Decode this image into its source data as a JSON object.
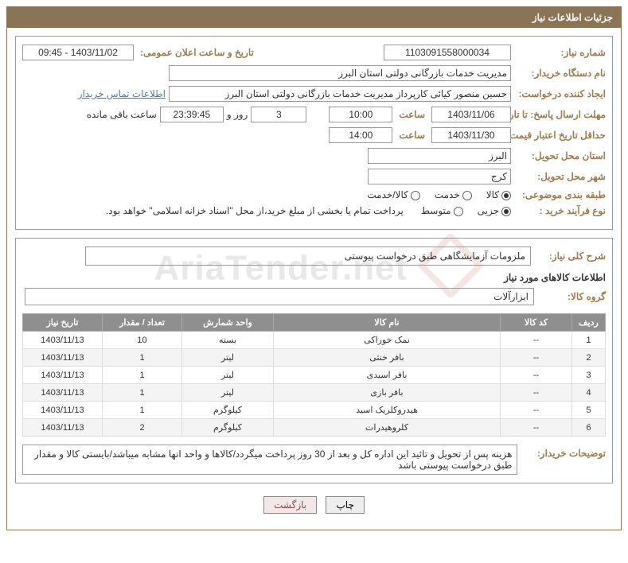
{
  "header_title": "جزئیات اطلاعات نیاز",
  "need_number_label": "شماره نیاز:",
  "need_number": "1103091558000034",
  "announce_label": "تاریخ و ساعت اعلان عمومی:",
  "announce_value": "1403/11/02 - 09:45",
  "buyer_org_label": "نام دستگاه خریدار:",
  "buyer_org": "مدیریت خدمات بازرگانی دولتی استان البرز",
  "requester_label": "ایجاد کننده درخواست:",
  "requester": "حسین منصور کیائی کارپرداز مدیریت خدمات بازرگانی دولتی استان البرز",
  "buyer_contact_link": "اطلاعات تماس خریدار",
  "deadline_label": "مهلت ارسال پاسخ: تا تاریخ:",
  "deadline_date": "1403/11/06",
  "time_label": "ساعت",
  "deadline_time": "10:00",
  "days_value": "3",
  "days_and": "روز و",
  "remaining_time": "23:39:45",
  "remaining_label": "ساعت باقی مانده",
  "validity_label": "حداقل تاریخ اعتبار قیمت: تا تاریخ:",
  "validity_date": "1403/11/30",
  "validity_time": "14:00",
  "province_label": "استان محل تحویل:",
  "province": "البرز",
  "city_label": "شهر محل تحویل:",
  "city": "کرج",
  "category_label": "طبقه بندی موضوعی:",
  "cat_goods": "کالا",
  "cat_service": "خدمت",
  "cat_goods_service": "کالا/خدمت",
  "purchase_type_label": "نوع فرآیند خرید :",
  "pt_partial": "جزیی",
  "pt_medium": "متوسط",
  "payment_note": "پرداخت تمام یا بخشی از مبلغ خرید،از محل \"اسناد خزانه اسلامی\" خواهد بود.",
  "general_desc_label": "شرح کلی نیاز:",
  "general_desc": "ملزومات آزمایشگاهی طبق درخواست پیوستی",
  "goods_info_title": "اطلاعات کالاهای مورد نیاز",
  "goods_group_label": "گروه کالا:",
  "goods_group": "ابزارآلات",
  "table": {
    "headers": {
      "row": "ردیف",
      "code": "کد کالا",
      "name": "نام کالا",
      "unit": "واحد شمارش",
      "qty": "تعداد / مقدار",
      "date": "تاریخ نیاز"
    },
    "rows": [
      {
        "row": "1",
        "code": "--",
        "name": "نمک خوراکی",
        "unit": "بسته",
        "qty": "10",
        "date": "1403/11/13"
      },
      {
        "row": "2",
        "code": "--",
        "name": "بافر خنثی",
        "unit": "لیتر",
        "qty": "1",
        "date": "1403/11/13"
      },
      {
        "row": "3",
        "code": "--",
        "name": "بافر اسیدی",
        "unit": "لیتر",
        "qty": "1",
        "date": "1403/11/13"
      },
      {
        "row": "4",
        "code": "--",
        "name": "بافر بازی",
        "unit": "لیتر",
        "qty": "1",
        "date": "1403/11/13"
      },
      {
        "row": "5",
        "code": "--",
        "name": "هیدروکلریک اسید",
        "unit": "کیلوگرم",
        "qty": "1",
        "date": "1403/11/13"
      },
      {
        "row": "6",
        "code": "--",
        "name": "کلروهیدرات",
        "unit": "کیلوگرم",
        "qty": "2",
        "date": "1403/11/13"
      }
    ]
  },
  "buyer_desc_label": "توضیحات خریدار:",
  "buyer_desc": "هزینه پس از تحویل و تائید این اداره کل و بعد از 30 روز پرداخت میگردد/کالاها و واحد انها مشابه میباشد/بایستی کالا و مقدار طبق درخواست پیوستی باشد",
  "btn_print": "چاپ",
  "btn_back": "بازگشت",
  "watermark_text": "AriaTender.net"
}
